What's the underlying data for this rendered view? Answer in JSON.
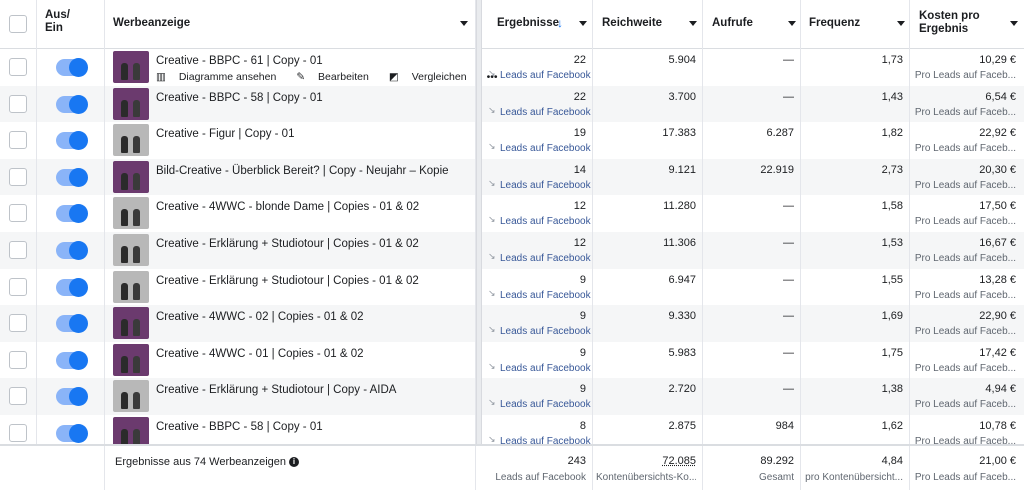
{
  "header": {
    "toggle_label": "Aus/\nEin",
    "ad": "Werbeanzeige",
    "results": "Ergebnisse",
    "reach": "Reichweite",
    "impressions": "Aufrufe",
    "frequency": "Frequenz",
    "cost": "Kosten pro Ergebnis"
  },
  "first_row_actions": {
    "charts": "Diagramme ansehen",
    "edit": "Bearbeiten",
    "compare": "Vergleichen",
    "more": "•••"
  },
  "rows": [
    {
      "name": "Creative - BBPC - 61 | Copy - 01",
      "results": "22",
      "result_type": "Leads auf Facebook",
      "reach": "5.904",
      "impressions": "—",
      "frequency": "1,73",
      "cost": "10,29 €",
      "cost_type": "Pro Leads auf Faceb..."
    },
    {
      "name": "Creative - BBPC - 58 | Copy - 01",
      "results": "22",
      "result_type": "Leads auf Facebook",
      "reach": "3.700",
      "impressions": "—",
      "frequency": "1,43",
      "cost": "6,54 €",
      "cost_type": "Pro Leads auf Faceb..."
    },
    {
      "name": "Creative - Figur | Copy - 01",
      "results": "19",
      "result_type": "Leads auf Facebook",
      "reach": "17.383",
      "impressions": "6.287",
      "frequency": "1,82",
      "cost": "22,92 €",
      "cost_type": "Pro Leads auf Faceb..."
    },
    {
      "name": "Bild-Creative - Überblick Bereit? | Copy - Neujahr – Kopie",
      "results": "14",
      "result_type": "Leads auf Facebook",
      "reach": "9.121",
      "impressions": "22.919",
      "frequency": "2,73",
      "cost": "20,30 €",
      "cost_type": "Pro Leads auf Faceb..."
    },
    {
      "name": "Creative - 4WWC - blonde Dame | Copies - 01 & 02",
      "results": "12",
      "result_type": "Leads auf Facebook",
      "reach": "11.280",
      "impressions": "—",
      "frequency": "1,58",
      "cost": "17,50 €",
      "cost_type": "Pro Leads auf Faceb..."
    },
    {
      "name": "Creative - Erklärung + Studiotour | Copies - 01 & 02",
      "results": "12",
      "result_type": "Leads auf Facebook",
      "reach": "11.306",
      "impressions": "—",
      "frequency": "1,53",
      "cost": "16,67 €",
      "cost_type": "Pro Leads auf Faceb..."
    },
    {
      "name": "Creative - Erklärung + Studiotour | Copies - 01 & 02",
      "results": "9",
      "result_type": "Leads auf Facebook",
      "reach": "6.947",
      "impressions": "—",
      "frequency": "1,55",
      "cost": "13,28 €",
      "cost_type": "Pro Leads auf Faceb..."
    },
    {
      "name": "Creative - 4WWC - 02 | Copies - 01 & 02",
      "results": "9",
      "result_type": "Leads auf Facebook",
      "reach": "9.330",
      "impressions": "—",
      "frequency": "1,69",
      "cost": "22,90 €",
      "cost_type": "Pro Leads auf Faceb..."
    },
    {
      "name": "Creative - 4WWC - 01 | Copies - 01 & 02",
      "results": "9",
      "result_type": "Leads auf Facebook",
      "reach": "5.983",
      "impressions": "—",
      "frequency": "1,75",
      "cost": "17,42 €",
      "cost_type": "Pro Leads auf Faceb..."
    },
    {
      "name": "Creative - Erklärung + Studiotour | Copy - AIDA",
      "results": "9",
      "result_type": "Leads auf Facebook",
      "reach": "2.720",
      "impressions": "—",
      "frequency": "1,38",
      "cost": "4,94 €",
      "cost_type": "Pro Leads auf Faceb..."
    },
    {
      "name": "Creative - BBPC - 58 | Copy - 01",
      "results": "8",
      "result_type": "Leads auf Facebook",
      "reach": "2.875",
      "impressions": "984",
      "frequency": "1,62",
      "cost": "10,78 €",
      "cost_type": "Pro Leads auf Faceb..."
    }
  ],
  "footer": {
    "summary": "Ergebnisse aus 74 Werbeanzeigen",
    "results": "243",
    "results_type": "Leads auf Facebook",
    "reach": "72.085",
    "reach_type": "Kontenübersichts-Ko...",
    "impressions": "89.292",
    "impressions_type": "Gesamt",
    "frequency": "4,84",
    "frequency_type": "pro Kontenübersicht...",
    "cost": "21,00 €",
    "cost_type": "Pro Leads auf Faceb..."
  },
  "colors": {
    "toggle_on": "#1877f2",
    "toggle_track": "#8ab4f8",
    "link": "#385898",
    "sort_arrow": "#1877f2"
  },
  "thumbnails": [
    "purple",
    "purple",
    "gray",
    "purple",
    "gray",
    "gray",
    "gray",
    "purple",
    "purple",
    "gray",
    "purple"
  ]
}
